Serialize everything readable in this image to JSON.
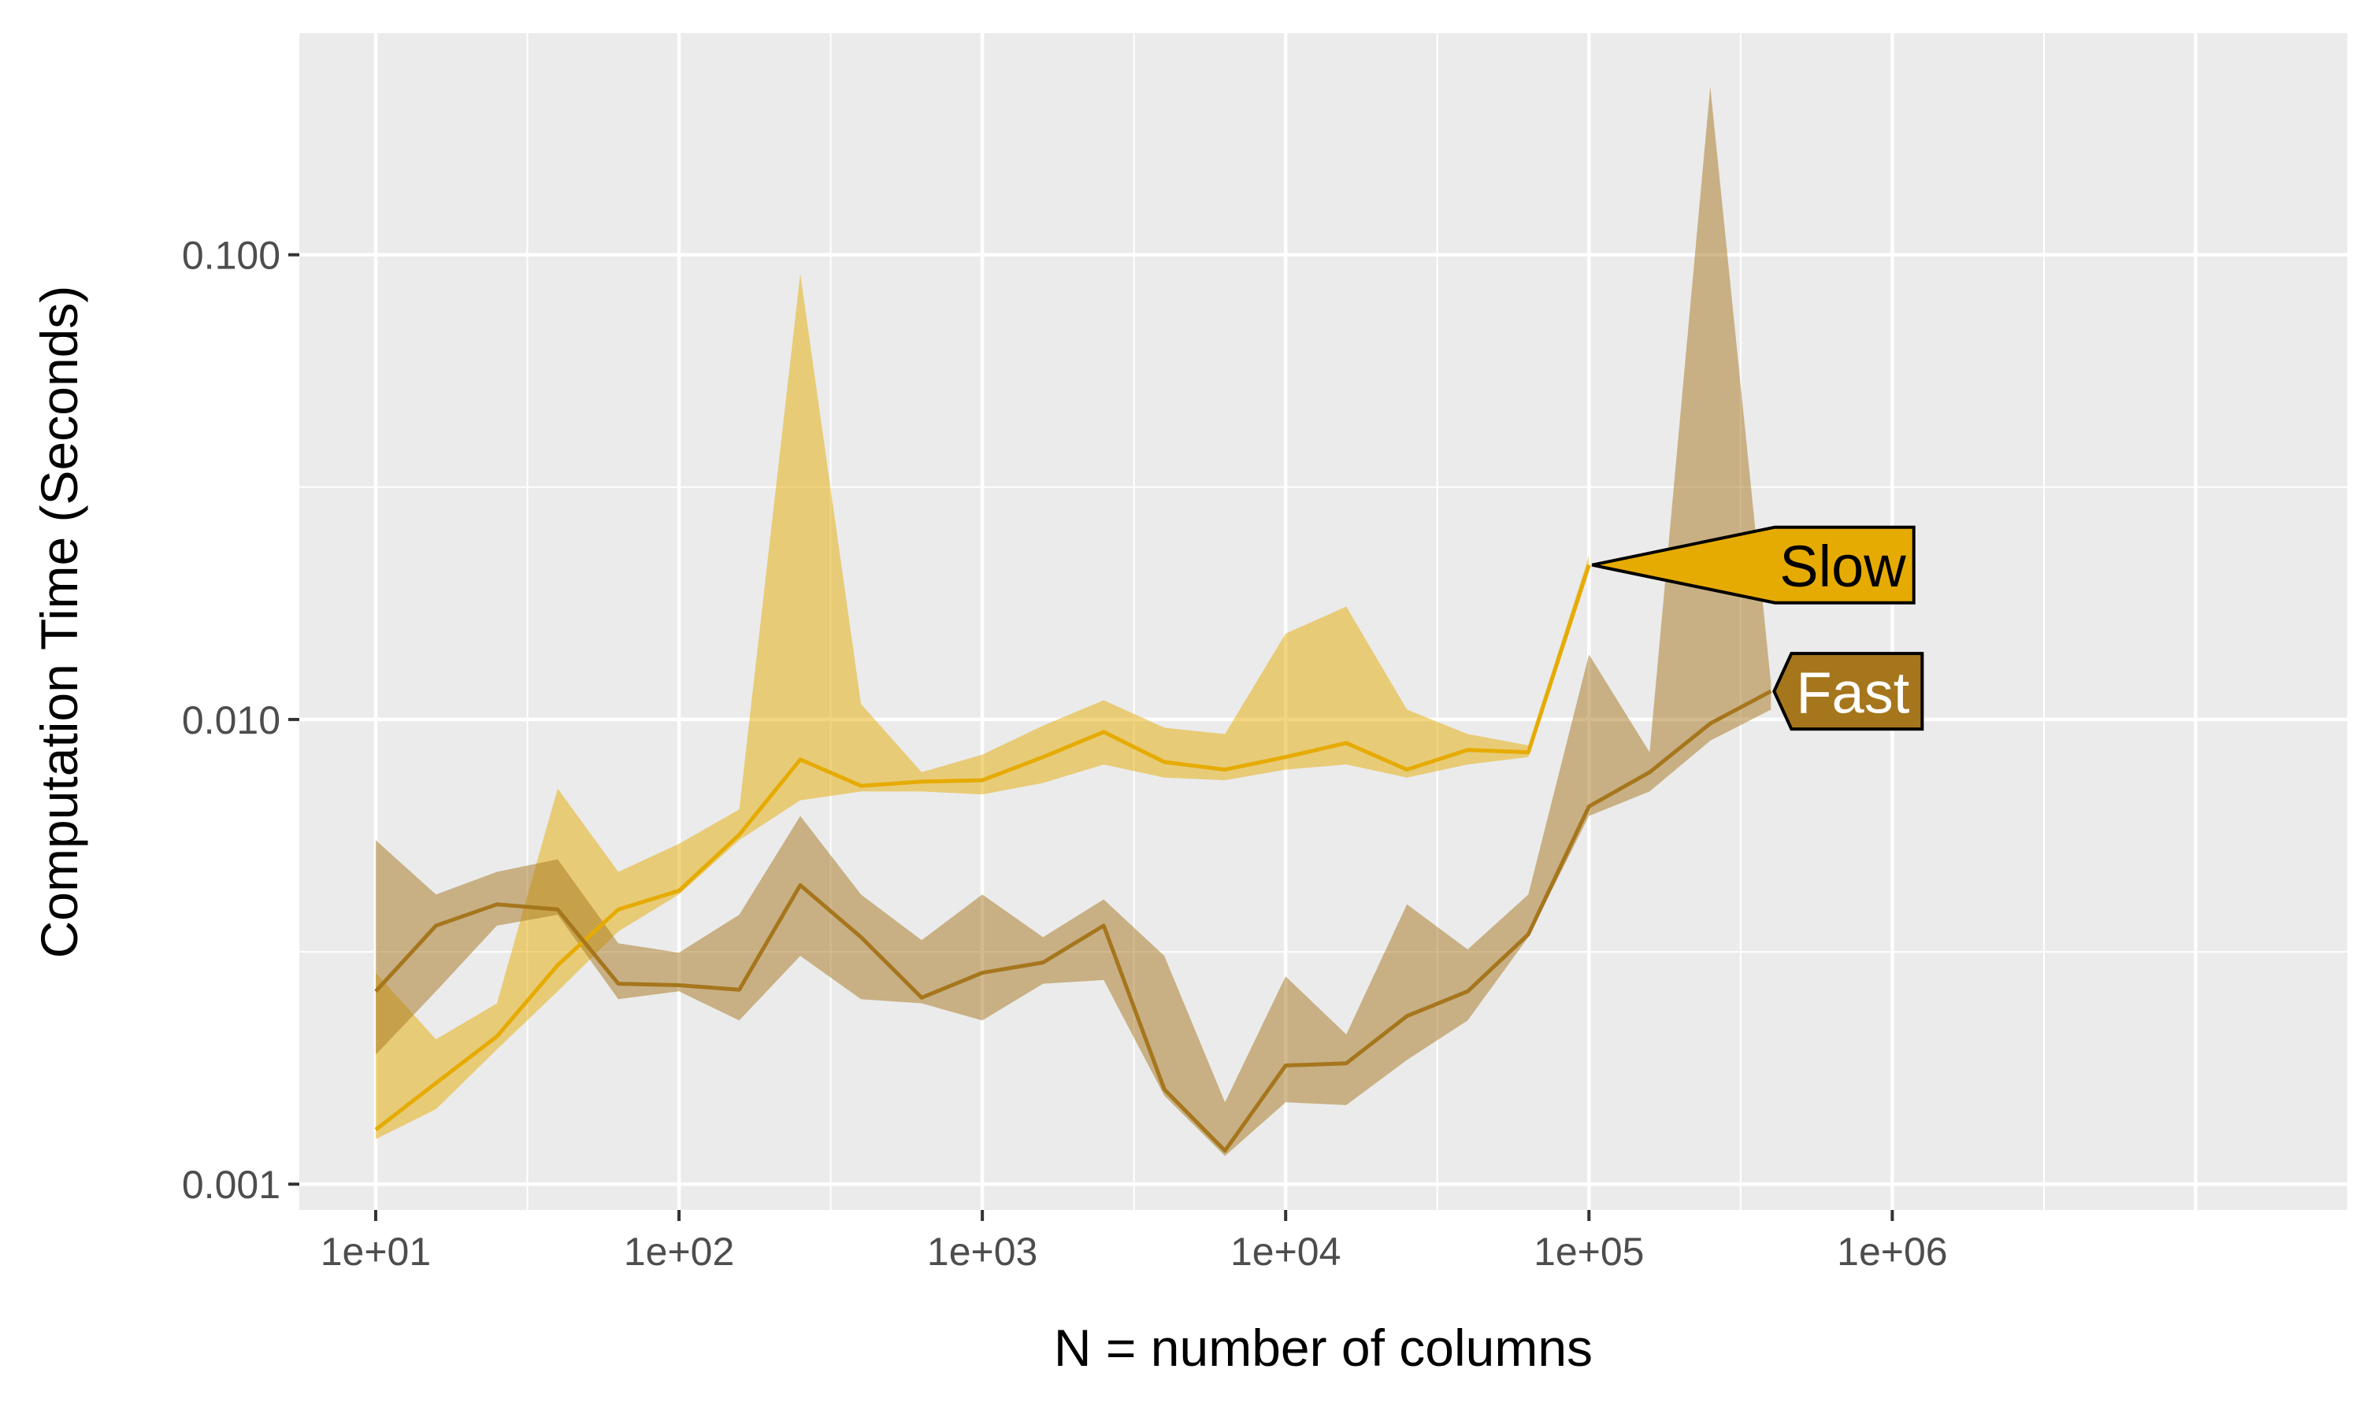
{
  "chart_data": {
    "type": "line",
    "xlabel": "N = number of columns",
    "ylabel": "Computation Time (Seconds)",
    "x_scale": "log10",
    "y_scale": "log10",
    "xlim": [
      5.6,
      31623000
    ],
    "ylim": [
      0.00088,
      0.3
    ],
    "grid": true,
    "legend": "none (direct labels)",
    "x_ticks": [
      {
        "value": 10,
        "label": "1e+01"
      },
      {
        "value": 100,
        "label": "1e+02"
      },
      {
        "value": 1000,
        "label": "1e+03"
      },
      {
        "value": 10000,
        "label": "1e+04"
      },
      {
        "value": 100000,
        "label": "1e+05"
      },
      {
        "value": 1000000,
        "label": "1e+06"
      }
    ],
    "y_ticks": [
      {
        "value": 0.001,
        "label": "0.001"
      },
      {
        "value": 0.01,
        "label": "0.010"
      },
      {
        "value": 0.1,
        "label": "0.100"
      }
    ],
    "colors": {
      "panel": "#ebebeb",
      "grid": "#ffffff",
      "slow": "#e6ab02",
      "fast": "#a6761d"
    },
    "series": [
      {
        "name": "Slow",
        "color": "#e6ab02",
        "label_fill": "#e6ab02",
        "label_text_color": "#000000",
        "x": [
          10,
          15.8,
          25.1,
          39.8,
          63.1,
          100,
          158,
          251,
          398,
          631,
          1000,
          1585,
          2512,
          3981,
          6310,
          10000,
          15849,
          25119,
          39811,
          63096,
          100000
        ],
        "median": [
          0.00131,
          0.00165,
          0.00208,
          0.00296,
          0.0039,
          0.00428,
          0.00565,
          0.0082,
          0.0072,
          0.00735,
          0.0074,
          0.0083,
          0.0094,
          0.0081,
          0.0078,
          0.0083,
          0.0089,
          0.0078,
          0.0086,
          0.0085,
          0.0215
        ],
        "lower": [
          0.00125,
          0.00145,
          0.00195,
          0.0026,
          0.0035,
          0.0042,
          0.0055,
          0.0067,
          0.007,
          0.007,
          0.0069,
          0.0073,
          0.008,
          0.0075,
          0.0074,
          0.0078,
          0.008,
          0.0075,
          0.008,
          0.0083,
          0.021
        ],
        "upper": [
          0.00285,
          0.00205,
          0.00245,
          0.0071,
          0.0047,
          0.0054,
          0.0064,
          0.091,
          0.0108,
          0.0077,
          0.0084,
          0.0097,
          0.011,
          0.0096,
          0.0093,
          0.0153,
          0.0175,
          0.0105,
          0.0093,
          0.0088,
          0.0225
        ]
      },
      {
        "name": "Fast",
        "color": "#a6761d",
        "label_fill": "#a6761d",
        "label_text_color": "#ffffff",
        "x": [
          10,
          15.8,
          25.1,
          39.8,
          63.1,
          100,
          158,
          251,
          398,
          631,
          1000,
          1585,
          2512,
          3981,
          6310,
          10000,
          15849,
          25119,
          39811,
          63096,
          100000,
          158489,
          251189,
          398107
        ],
        "median": [
          0.0026,
          0.0036,
          0.004,
          0.0039,
          0.0027,
          0.00268,
          0.00262,
          0.0044,
          0.0034,
          0.00252,
          0.00285,
          0.003,
          0.0036,
          0.0016,
          0.00118,
          0.0018,
          0.00182,
          0.0023,
          0.0026,
          0.00345,
          0.0065,
          0.0077,
          0.0098,
          0.0115
        ],
        "lower": [
          0.0019,
          0.0026,
          0.0036,
          0.0038,
          0.0025,
          0.0026,
          0.00225,
          0.0031,
          0.0025,
          0.00245,
          0.00225,
          0.0027,
          0.00275,
          0.00155,
          0.00115,
          0.0015,
          0.00148,
          0.00185,
          0.00225,
          0.0034,
          0.0062,
          0.007,
          0.009,
          0.0105
        ],
        "upper": [
          0.0055,
          0.0042,
          0.0047,
          0.005,
          0.0033,
          0.00315,
          0.0038,
          0.0062,
          0.0042,
          0.00335,
          0.0042,
          0.0034,
          0.0041,
          0.0031,
          0.0015,
          0.0028,
          0.0021,
          0.004,
          0.0032,
          0.0042,
          0.0138,
          0.0085,
          0.23,
          0.012
        ]
      }
    ]
  }
}
